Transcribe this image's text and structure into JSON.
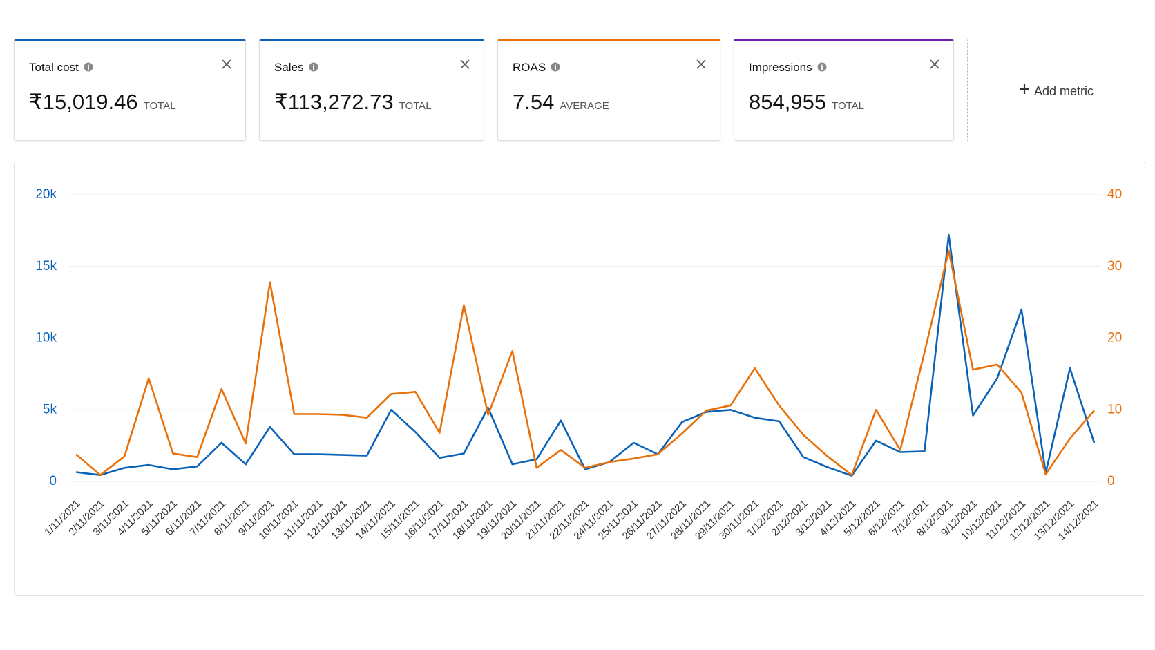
{
  "metrics": [
    {
      "name": "Total cost",
      "value": "₹15,019.46",
      "aggregate": "TOTAL",
      "color": "#0a62b8"
    },
    {
      "name": "Sales",
      "value": "₹113,272.73",
      "aggregate": "TOTAL",
      "color": "#0a62b8"
    },
    {
      "name": "ROAS",
      "value": "7.54",
      "aggregate": "AVERAGE",
      "color": "#e8700a"
    },
    {
      "name": "Impressions",
      "value": "854,955",
      "aggregate": "TOTAL",
      "color": "#6d1fb0"
    }
  ],
  "add_metric": "Add metric",
  "chart_data": {
    "type": "line",
    "x": [
      "1/11/2021",
      "2/11/2021",
      "3/11/2021",
      "4/11/2021",
      "5/11/2021",
      "6/11/2021",
      "7/11/2021",
      "8/11/2021",
      "9/11/2021",
      "10/11/2021",
      "11/11/2021",
      "12/11/2021",
      "13/11/2021",
      "14/11/2021",
      "15/11/2021",
      "16/11/2021",
      "17/11/2021",
      "18/11/2021",
      "19/11/2021",
      "20/11/2021",
      "21/11/2021",
      "22/11/2021",
      "24/11/2021",
      "25/11/2021",
      "26/11/2021",
      "27/11/2021",
      "28/11/2021",
      "29/11/2021",
      "30/11/2021",
      "1/12/2021",
      "2/12/2021",
      "3/12/2021",
      "4/12/2021",
      "5/12/2021",
      "6/12/2021",
      "7/12/2021",
      "8/12/2021",
      "9/12/2021",
      "10/12/2021",
      "11/12/2021",
      "12/12/2021",
      "13/12/2021",
      "14/12/2021"
    ],
    "series": [
      {
        "color": "#0a62b8",
        "axis": "y",
        "values": [
          650,
          450,
          950,
          1150,
          850,
          1050,
          2700,
          1200,
          3800,
          1900,
          1900,
          1850,
          1800,
          5000,
          3450,
          1650,
          1950,
          5150,
          1200,
          1550,
          4250,
          850,
          1350,
          2700,
          1900,
          4150,
          4850,
          5000,
          4450,
          4200,
          1700,
          1000,
          400,
          2850,
          2050,
          2100,
          17200,
          4600,
          7200,
          12000,
          600,
          7900,
          2700
        ]
      },
      {
        "color": "#e8700a",
        "axis": "y2",
        "values": [
          3.8,
          0.9,
          3.5,
          14.4,
          3.9,
          3.4,
          12.9,
          5.3,
          27.8,
          9.4,
          9.4,
          9.3,
          8.9,
          12.2,
          12.5,
          6.8,
          24.6,
          9.3,
          18.2,
          1.9,
          4.4,
          1.9,
          2.7,
          3.2,
          3.8,
          6.7,
          9.9,
          10.6,
          15.8,
          10.6,
          6.5,
          3.5,
          0.9,
          10.0,
          4.4,
          18,
          32.2,
          15.6,
          16.3,
          12.4,
          1.0,
          6.0,
          9.9
        ]
      }
    ],
    "ylim": [
      0,
      20000
    ],
    "yticks": [
      0,
      {
        "value": 5000,
        "label": "5k"
      },
      {
        "value": 10000,
        "label": "10k"
      },
      {
        "value": 15000,
        "label": "15k"
      },
      {
        "value": 20000,
        "label": "20k"
      }
    ],
    "y2lim": [
      0,
      40
    ],
    "y2ticks": [
      0,
      10,
      20,
      30,
      40
    ],
    "grid": true
  }
}
